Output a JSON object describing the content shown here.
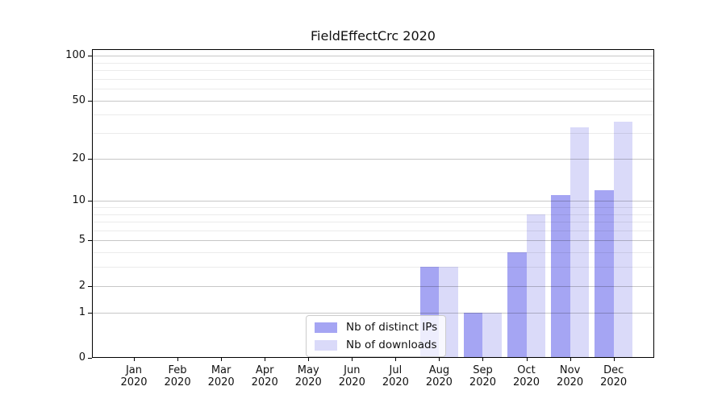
{
  "title": "FieldEffectCrc 2020",
  "colors": {
    "bar_distinct_ips": "#a5a5f3",
    "bar_downloads": "#dadaf9",
    "grid_major": "rgba(0,0,0,0.22)",
    "grid_minor": "rgba(0,0,0,0.08)",
    "axis_spine": "#000000",
    "text": "#111111",
    "legend_border": "#cccccc"
  },
  "legend": {
    "items": [
      {
        "label": "Nb of distinct IPs"
      },
      {
        "label": "Nb of downloads"
      }
    ]
  },
  "chart_data": {
    "type": "bar",
    "title": "FieldEffectCrc 2020",
    "x": {
      "months": [
        "Jan",
        "Feb",
        "Mar",
        "Apr",
        "May",
        "Jun",
        "Jul",
        "Aug",
        "Sep",
        "Oct",
        "Nov",
        "Dec"
      ],
      "year": "2020"
    },
    "series": [
      {
        "name": "Nb of distinct IPs",
        "color": "#a5a5f3",
        "values": [
          0,
          0,
          0,
          0,
          0,
          0,
          0,
          3,
          1,
          4,
          11,
          12
        ]
      },
      {
        "name": "Nb of downloads",
        "color": "#dadaf9",
        "values": [
          0,
          0,
          0,
          0,
          0,
          0,
          0,
          3,
          1,
          8,
          33,
          36
        ]
      }
    ],
    "yscale": "log1p",
    "yticks_major": [
      0,
      1,
      2,
      5,
      10,
      20,
      50,
      100
    ],
    "yticks_minor": [
      3,
      4,
      6,
      7,
      8,
      9,
      30,
      40,
      60,
      70,
      80,
      90
    ],
    "ylim": [
      0,
      110
    ],
    "grid": "both, horizontal only, drawn above bars",
    "legend_position": "lower center inside axes"
  }
}
